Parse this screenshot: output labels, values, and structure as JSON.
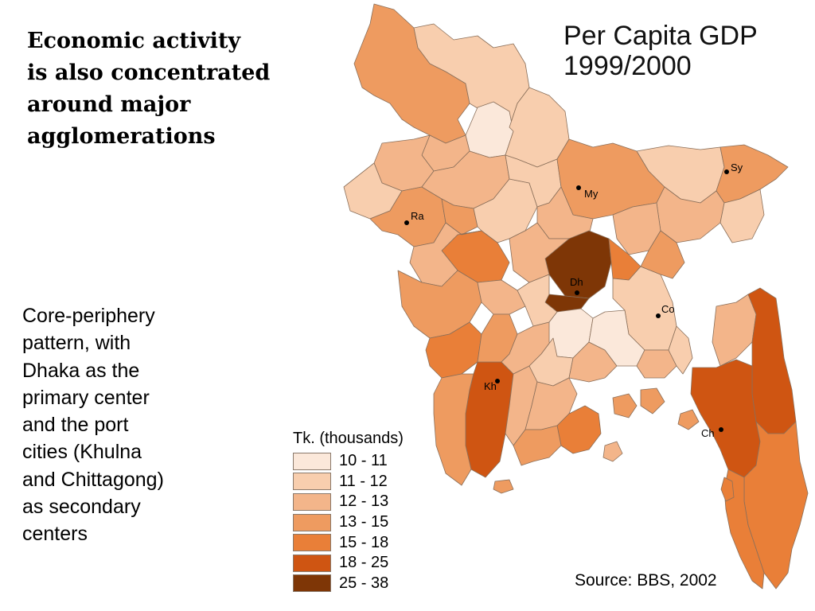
{
  "heading": {
    "lines": [
      "Economic activity",
      "is also concentrated",
      "around major",
      "agglomerations"
    ]
  },
  "body_text": {
    "lines": [
      "Core-periphery",
      "pattern, with",
      "Dhaka as the",
      "primary center",
      "and the port",
      "cities (Khulna",
      "and Chittagong)",
      "as secondary",
      "centers"
    ]
  },
  "map": {
    "title_lines": [
      "Per Capita GDP",
      "1999/2000"
    ],
    "cities": [
      {
        "code": "Sy"
      },
      {
        "code": "My"
      },
      {
        "code": "Ra"
      },
      {
        "code": "Dh"
      },
      {
        "code": "Co"
      },
      {
        "code": "Kh"
      },
      {
        "code": "Ch"
      }
    ],
    "legend": {
      "title": "Tk. (thousands)",
      "classes": [
        {
          "label": "10 - 11",
          "color": "#fbe8da"
        },
        {
          "label": "11 - 12",
          "color": "#f8ceae"
        },
        {
          "label": "12 - 13",
          "color": "#f3b58a"
        },
        {
          "label": "13 - 15",
          "color": "#ee9b60"
        },
        {
          "label": "15 - 18",
          "color": "#e97f38"
        },
        {
          "label": "18 - 25",
          "color": "#cf5512"
        },
        {
          "label": "25 - 38",
          "color": "#7e3606"
        }
      ]
    },
    "source": "Source: BBS, 2002",
    "colors": {
      "water": "#ffffff",
      "border": "#8a6f5a"
    }
  }
}
